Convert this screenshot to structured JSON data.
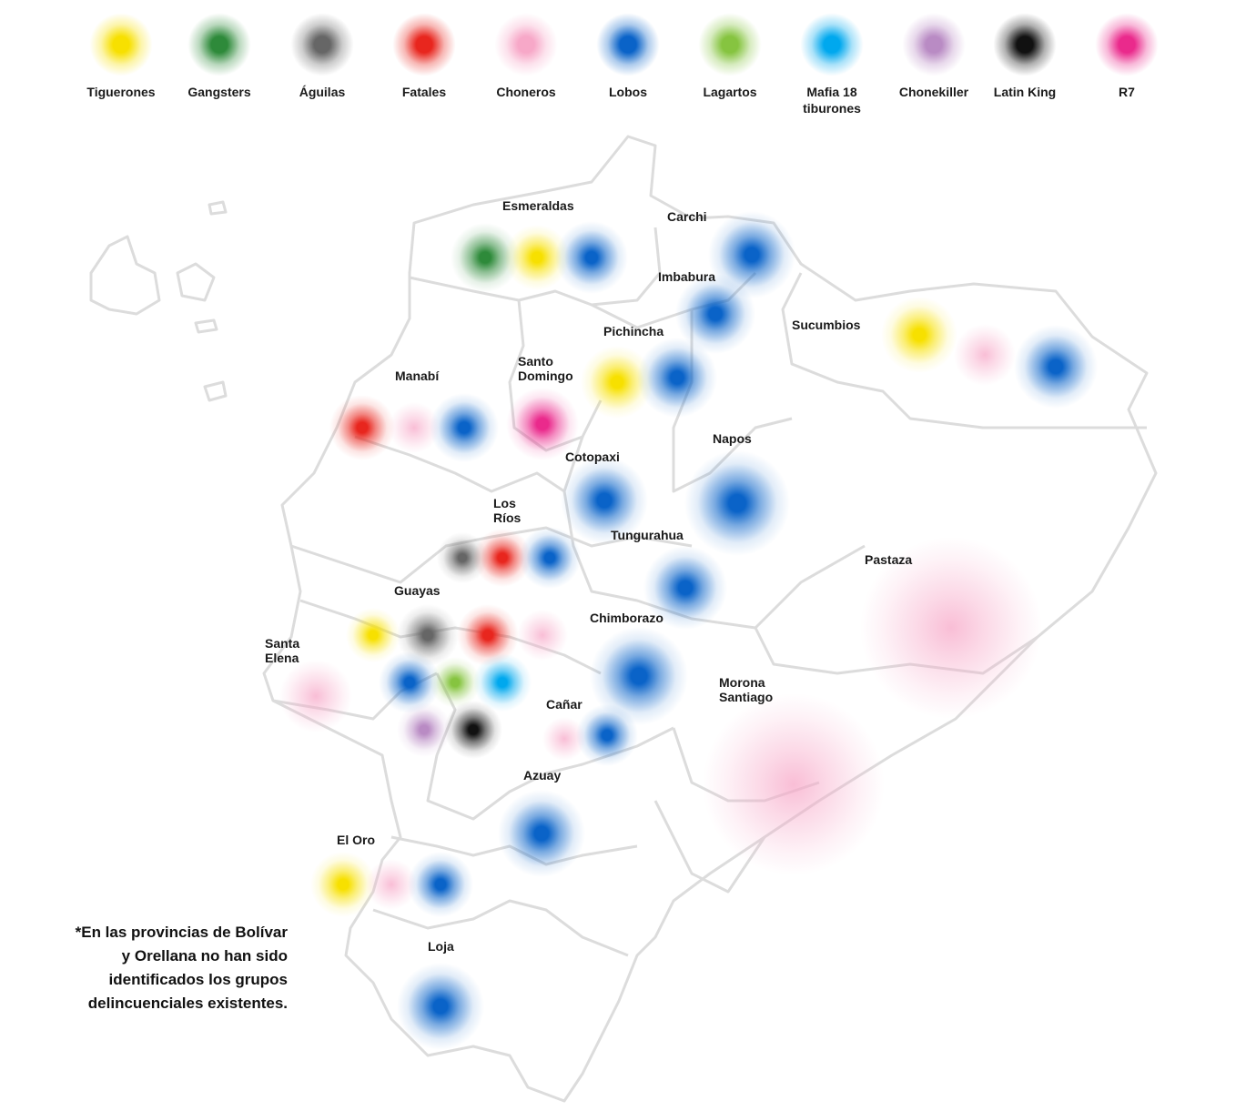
{
  "gangs": [
    {
      "id": "tiguerones",
      "name": "Tiguerones",
      "color": "#f7e000"
    },
    {
      "id": "gangsters",
      "name": "Gangsters",
      "color": "#2e8a3a"
    },
    {
      "id": "aguilas",
      "name": "Águilas",
      "color": "#666666"
    },
    {
      "id": "fatales",
      "name": "Fatales",
      "color": "#e8261e"
    },
    {
      "id": "choneros",
      "name": "Choneros",
      "color": "#f7a8c8"
    },
    {
      "id": "lobos",
      "name": "Lobos",
      "color": "#0a63c8"
    },
    {
      "id": "lagartos",
      "name": "Lagartos",
      "color": "#86c440"
    },
    {
      "id": "mafia18",
      "name": "Mafia 18\ntiburones",
      "color": "#00a8ee"
    },
    {
      "id": "chonekiller",
      "name": "Chonekiller",
      "color": "#b98bc4"
    },
    {
      "id": "latinking",
      "name": "Latin King",
      "color": "#111111"
    },
    {
      "id": "r7",
      "name": "R7",
      "color": "#ea2a8c"
    }
  ],
  "provinces": [
    {
      "name": "Esmeraldas",
      "gangs": [
        "gangsters",
        "tiguerones",
        "lobos"
      ]
    },
    {
      "name": "Carchi",
      "gangs": [
        "lobos"
      ]
    },
    {
      "name": "Imbabura",
      "gangs": [
        "lobos"
      ]
    },
    {
      "name": "Sucumbios",
      "gangs": [
        "tiguerones",
        "choneros",
        "lobos"
      ]
    },
    {
      "name": "Pichincha",
      "gangs": [
        "tiguerones",
        "lobos"
      ]
    },
    {
      "name": "Manabí",
      "gangs": [
        "fatales",
        "choneros",
        "lobos"
      ]
    },
    {
      "name": "Santo\nDomingo",
      "gangs": [
        "r7"
      ]
    },
    {
      "name": "Cotopaxi",
      "gangs": [
        "lobos"
      ]
    },
    {
      "name": "Napos",
      "gangs": [
        "lobos"
      ]
    },
    {
      "name": "Los\nRíos",
      "gangs": [
        "aguilas",
        "fatales",
        "lobos"
      ]
    },
    {
      "name": "Tungurahua",
      "gangs": [
        "lobos"
      ]
    },
    {
      "name": "Pastaza",
      "gangs": [
        "choneros"
      ]
    },
    {
      "name": "Guayas",
      "gangs": [
        "tiguerones",
        "aguilas",
        "fatales",
        "choneros",
        "lobos",
        "lagartos",
        "mafia18",
        "chonekiller",
        "latinking"
      ]
    },
    {
      "name": "Chimborazo",
      "gangs": [
        "lobos"
      ]
    },
    {
      "name": "Santa\nElena",
      "gangs": [
        "choneros"
      ]
    },
    {
      "name": "Morona\nSantiago",
      "gangs": [
        "choneros"
      ]
    },
    {
      "name": "Cañar",
      "gangs": [
        "choneros",
        "lobos"
      ]
    },
    {
      "name": "Azuay",
      "gangs": [
        "lobos"
      ]
    },
    {
      "name": "El Oro",
      "gangs": [
        "tiguerones",
        "choneros",
        "lobos"
      ]
    },
    {
      "name": "Loja",
      "gangs": [
        "lobos"
      ]
    }
  ],
  "footnote": "*En las provincias de Bolívar\ny Orellana no han sido\nidentificados los grupos\ndelincuenciales existentes."
}
